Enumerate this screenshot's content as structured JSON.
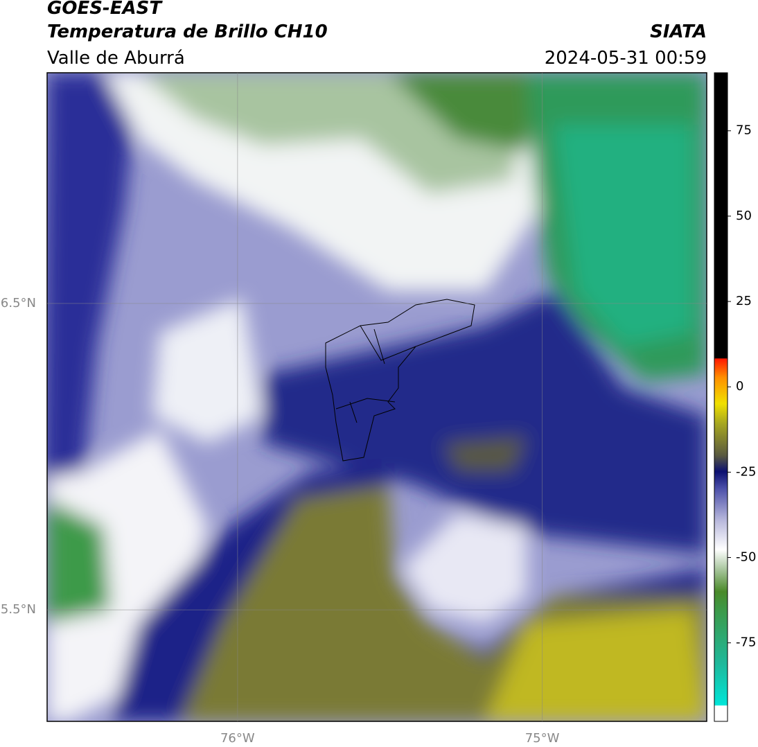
{
  "map": {
    "title": "GOES-EAST",
    "subtitle": "Temperatura de Brillo CH10",
    "region": "Valle de Aburrá",
    "source": "SIATA",
    "datetime": "2024-05-31 00:59",
    "xlim": [
      -76.625,
      -74.46
    ],
    "ylim": [
      5.136,
      7.253
    ],
    "xticks": [
      {
        "value": -76,
        "label": "76°W"
      },
      {
        "value": -75,
        "label": "75°W"
      }
    ],
    "yticks": [
      {
        "value": 6.5,
        "label": "6.5°N"
      },
      {
        "value": 5.5,
        "label": "5.5°N"
      }
    ],
    "colorbar": {
      "lim": [
        -98,
        92
      ],
      "ticks": [
        75,
        50,
        25,
        0,
        -25,
        -50,
        -75
      ]
    }
  }
}
